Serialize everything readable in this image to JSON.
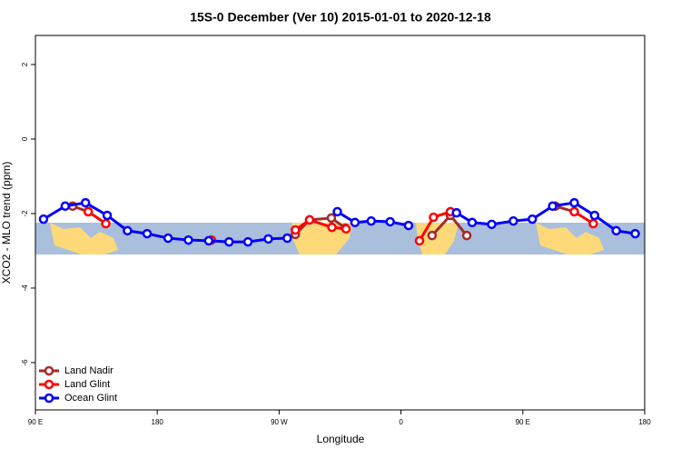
{
  "chart_data": {
    "type": "line",
    "title": "15S-0 December (Ver 10)   2015-01-01 to 2020-12-18",
    "x_label": "Longitude",
    "y_label": "XCO2 - MLO trend (ppm)",
    "xlim": [
      -270,
      180
    ],
    "ylim": [
      -7.27,
      2.78
    ],
    "xticks": [
      {
        "value": -270,
        "label": "90 E"
      },
      {
        "value": -180,
        "label": "180"
      },
      {
        "value": -90,
        "label": "90 W"
      },
      0,
      {
        "value": 90,
        "label": "90 E"
      },
      180
    ],
    "yticks": [
      -6,
      -4,
      -2,
      0,
      2
    ],
    "legend": "bottom-left",
    "series": [
      {
        "name": "Land Nadir",
        "color": "#a52a2a",
        "x": [
          -242.5,
          -231,
          -150,
          -78,
          -67.5,
          -51.4,
          -41,
          -10,
          23,
          36.5,
          48.6,
          80,
          114,
          128
        ],
        "values": [
          -1.8,
          -1.95,
          null,
          -2.56,
          -2.17,
          -2.12,
          -2.39,
          null,
          -2.59,
          -2.05,
          -2.59,
          null,
          -1.8,
          -1.95
        ]
      },
      {
        "name": "Land Glint",
        "color": "#ff0000",
        "x": [
          -231,
          -218,
          -170,
          -140,
          -110,
          -78,
          -67.5,
          -51,
          -40.6,
          -10,
          13.7,
          24,
          36.5,
          80,
          128,
          142
        ],
        "values": [
          -1.95,
          -2.27,
          null,
          -2.71,
          null,
          -2.44,
          -2.17,
          -2.37,
          -2.41,
          null,
          -2.73,
          -2.1,
          -1.95,
          null,
          -1.95,
          -2.27
        ]
      },
      {
        "name": "Ocean Glint",
        "color": "#0000ff",
        "x": [
          -264,
          -248,
          -233,
          -217,
          -202,
          -187.5,
          -172,
          -157,
          -142,
          -127,
          -113,
          -98,
          -84,
          -65,
          -47,
          -34,
          -22,
          -8,
          5.6,
          25,
          41,
          52.6,
          67,
          83,
          97,
          112,
          128,
          143,
          159,
          173
        ],
        "values": [
          -2.15,
          -1.8,
          -1.71,
          -2.05,
          -2.46,
          -2.54,
          -2.66,
          -2.71,
          -2.73,
          -2.76,
          -2.76,
          -2.68,
          -2.66,
          null,
          -1.95,
          -2.24,
          -2.2,
          -2.22,
          -2.32,
          null,
          -1.98,
          -2.24,
          -2.29,
          -2.2,
          -2.15,
          -1.8,
          -1.71,
          -2.05,
          -2.46,
          -2.54
        ]
      }
    ]
  }
}
